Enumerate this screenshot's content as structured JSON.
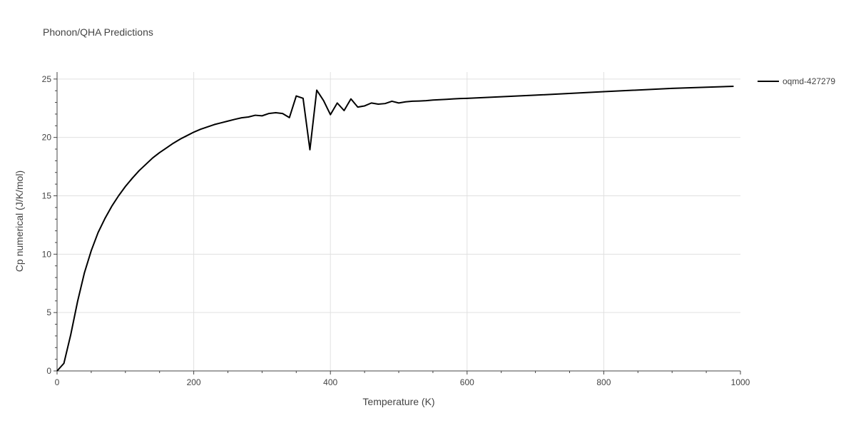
{
  "chart_data": {
    "type": "line",
    "title": "Phonon/QHA Predictions",
    "xlabel": "Temperature (K)",
    "ylabel": "Cp numerical (J/K/mol)",
    "xlim": [
      0,
      1000
    ],
    "ylim": [
      0,
      25.6
    ],
    "xticks": [
      0,
      200,
      400,
      600,
      800,
      1000
    ],
    "xtick_labels": [
      "0",
      "200",
      "400",
      "600",
      "800",
      "1000"
    ],
    "yticks": [
      0,
      5,
      10,
      15,
      20,
      25
    ],
    "ytick_labels": [
      "0",
      "5",
      "10",
      "15",
      "20",
      "25"
    ],
    "grid": true,
    "legend_position": "top-right",
    "colors": {
      "line": "#000000",
      "grid": "#e0e0e0",
      "text": "#444444"
    },
    "series": [
      {
        "name": "oqmd-427279",
        "x": [
          0,
          10,
          20,
          30,
          40,
          50,
          60,
          70,
          80,
          90,
          100,
          110,
          120,
          130,
          140,
          150,
          160,
          170,
          180,
          190,
          200,
          210,
          220,
          230,
          240,
          250,
          260,
          270,
          280,
          290,
          300,
          310,
          320,
          330,
          340,
          350,
          360,
          370,
          380,
          390,
          400,
          410,
          420,
          430,
          440,
          450,
          460,
          470,
          480,
          490,
          500,
          510,
          520,
          530,
          540,
          550,
          560,
          570,
          580,
          590,
          600,
          700,
          800,
          900,
          990
        ],
        "y": [
          0.0,
          0.65,
          3.1,
          5.95,
          8.4,
          10.3,
          11.85,
          13.05,
          14.1,
          15.0,
          15.8,
          16.5,
          17.15,
          17.7,
          18.25,
          18.7,
          19.1,
          19.5,
          19.85,
          20.15,
          20.45,
          20.7,
          20.9,
          21.1,
          21.25,
          21.4,
          21.55,
          21.68,
          21.75,
          21.9,
          21.85,
          22.05,
          22.12,
          22.05,
          21.7,
          23.55,
          23.35,
          18.95,
          24.05,
          23.15,
          21.95,
          22.95,
          22.3,
          23.3,
          22.6,
          22.7,
          22.95,
          22.85,
          22.9,
          23.1,
          22.95,
          23.05,
          23.1,
          23.12,
          23.15,
          23.2,
          23.23,
          23.26,
          23.3,
          23.33,
          23.35,
          23.62,
          23.92,
          24.2,
          24.38
        ]
      }
    ]
  }
}
